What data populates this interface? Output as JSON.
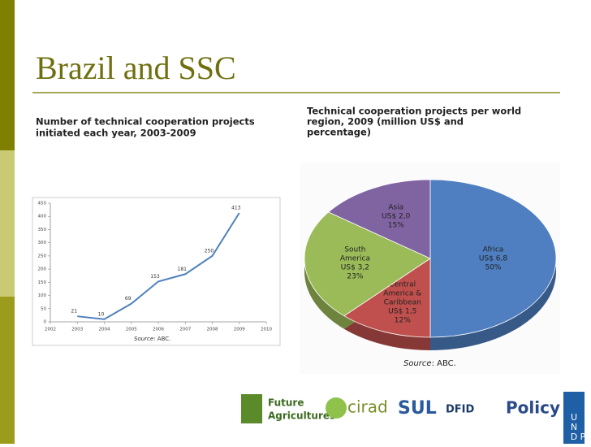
{
  "slide": {
    "title": "Brazil and SSC",
    "logos": [
      "Future",
      "Agricultures",
      "cirad",
      "SUL",
      "DFID",
      "Policy",
      "U",
      "N",
      "D",
      "P"
    ]
  },
  "chart_data": [
    {
      "type": "line",
      "subtitle": "Number of technical cooperation projects initiated each year, 2003-2009",
      "subtitle_lines": [
        "Number of technical cooperation projects",
        "initiated each year, 2003-2009"
      ],
      "x": [
        2003,
        2004,
        2005,
        2006,
        2007,
        2008,
        2009
      ],
      "values": [
        21,
        10,
        69,
        153,
        181,
        250,
        413
      ],
      "color": "#4f81bd",
      "xlim": [
        2002,
        2010
      ],
      "xticks": [
        2002,
        2003,
        2004,
        2005,
        2006,
        2007,
        2008,
        2009,
        2010
      ],
      "ylim": [
        0,
        450
      ],
      "yticks": [
        0,
        50,
        100,
        150,
        200,
        250,
        300,
        350,
        400,
        450
      ],
      "source": [
        "Source",
        ": ABC."
      ]
    },
    {
      "type": "pie",
      "subtitle_lines": [
        "Technical cooperation projects per world",
        "region, 2009 (million US$ and",
        "percentage)"
      ],
      "labels": [
        [
          "Africa"
        ],
        [
          "Central",
          "America &",
          "Caribbean"
        ],
        [
          "South",
          "America"
        ],
        [
          "Asia"
        ]
      ],
      "values": [
        50,
        12,
        23,
        15
      ],
      "value_labels": [
        "50%",
        "12%",
        "23%",
        "15%"
      ],
      "amounts": [
        6.8,
        1.5,
        3.2,
        2.0
      ],
      "amount_labels": [
        "US$ 6,8",
        "US$ 1,5",
        "US$ 3,2",
        "US$ 2,0"
      ],
      "colors": [
        "#4f7fc1",
        "#c0504d",
        "#9bbb59",
        "#8064a2"
      ],
      "source": [
        "Source",
        ": ABC."
      ]
    }
  ]
}
